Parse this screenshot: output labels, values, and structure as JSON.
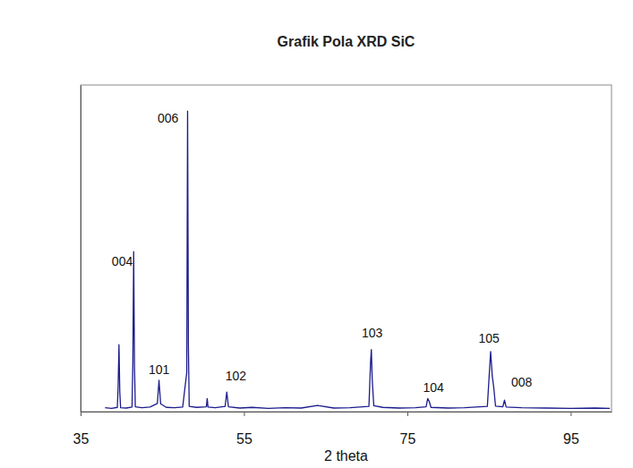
{
  "chart_data": {
    "type": "line",
    "title": "Grafik Pola XRD SiC",
    "x_label": "2 theta",
    "color": "#1c1c8c",
    "xlim": [
      35,
      100
    ],
    "xticks": [
      35,
      55,
      75,
      95
    ],
    "ylim": [
      0,
      100
    ],
    "tick_labels": "x",
    "grid": false,
    "x": [
      38.0,
      38.8,
      39.5,
      39.6,
      39.7,
      39.8,
      39.9,
      40.6,
      41.3,
      41.4,
      41.5,
      41.6,
      41.7,
      42.5,
      43.5,
      44.4,
      44.6,
      44.8,
      45.5,
      46.5,
      47.5,
      48.0,
      48.1,
      48.2,
      48.3,
      49.2,
      50.4,
      50.5,
      50.6,
      51.5,
      52.7,
      52.9,
      53.1,
      54.5,
      56.0,
      58.0,
      60.0,
      62.0,
      64.0,
      64.2,
      66.0,
      68.0,
      70.3,
      70.5,
      70.6,
      70.7,
      70.9,
      72.0,
      74.0,
      76.0,
      77.3,
      77.5,
      77.7,
      77.9,
      80.0,
      82.0,
      84.8,
      85.0,
      85.2,
      85.4,
      85.6,
      85.8,
      86.7,
      86.9,
      87.1,
      89.0,
      92.0,
      95.0,
      98.0,
      99.8
    ],
    "values": [
      1.2,
      1.0,
      1.3,
      8,
      20.5,
      6,
      1.2,
      1.1,
      1.4,
      15,
      49,
      14,
      1.5,
      1.2,
      1.4,
      2.5,
      9.6,
      2.4,
      1.3,
      1.2,
      1.4,
      12,
      92,
      20,
      1.6,
      1.3,
      1.5,
      4,
      1.4,
      1.2,
      1.6,
      6,
      1.5,
      1.1,
      1.3,
      1.0,
      1.2,
      1.1,
      1.9,
      1.8,
      1.1,
      1.2,
      1.6,
      15,
      19,
      10,
      1.8,
      1.3,
      1.1,
      1.2,
      1.5,
      4,
      3,
      1.3,
      1.1,
      1.2,
      1.6,
      10,
      18.4,
      11,
      7,
      1.7,
      1.5,
      3.5,
      1.4,
      1.2,
      1.1,
      1.0,
      1.1,
      1.0
    ],
    "annotations": [
      {
        "text": "004",
        "x": 40.1,
        "y": 46
      },
      {
        "text": "101",
        "x": 44.6,
        "y": 13
      },
      {
        "text": "006",
        "x": 45.7,
        "y": 90
      },
      {
        "text": "102",
        "x": 54.0,
        "y": 11
      },
      {
        "text": "103",
        "x": 70.7,
        "y": 24
      },
      {
        "text": "104",
        "x": 78.2,
        "y": 7.5
      },
      {
        "text": "105",
        "x": 85.0,
        "y": 22.5
      },
      {
        "text": "008",
        "x": 89.0,
        "y": 9
      }
    ]
  }
}
